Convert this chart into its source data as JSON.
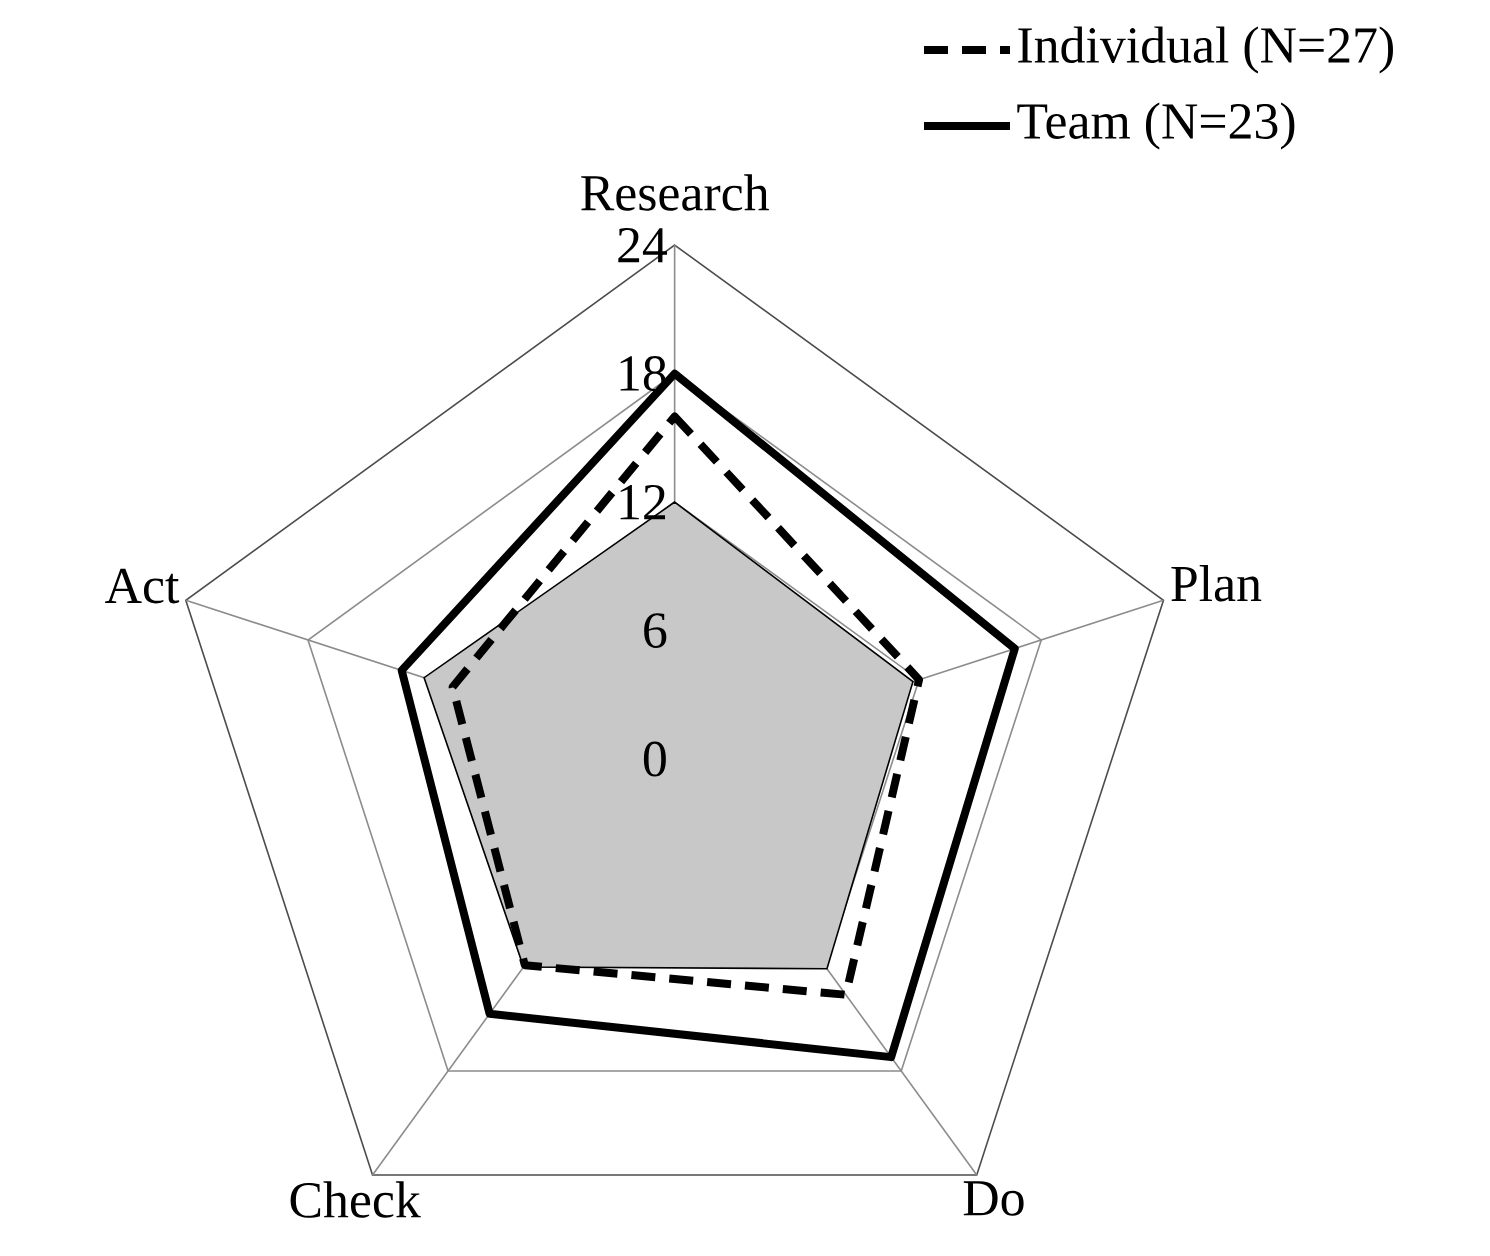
{
  "chart_data": {
    "type": "radar",
    "categories": [
      "Research",
      "Plan",
      "Do",
      "Check",
      "Act"
    ],
    "series": [
      {
        "type": "area",
        "color": "#c8c8c8",
        "values": [
          12,
          11.7,
          12.1,
          12,
          12.3
        ]
      },
      {
        "name": "Individual (N=27)",
        "color": "#000000",
        "line_style": "dashed",
        "values": [
          16,
          12,
          13.6,
          11.9,
          10.9
        ]
      },
      {
        "name": "Team (N=23)",
        "color": "#000000",
        "line_style": "solid",
        "values": [
          18,
          16.7,
          17.2,
          14.7,
          13.4
        ]
      }
    ],
    "ylim": [
      0,
      24
    ],
    "yticks": [
      0,
      6,
      12,
      18,
      24
    ],
    "grid": true,
    "legend": "top right"
  }
}
